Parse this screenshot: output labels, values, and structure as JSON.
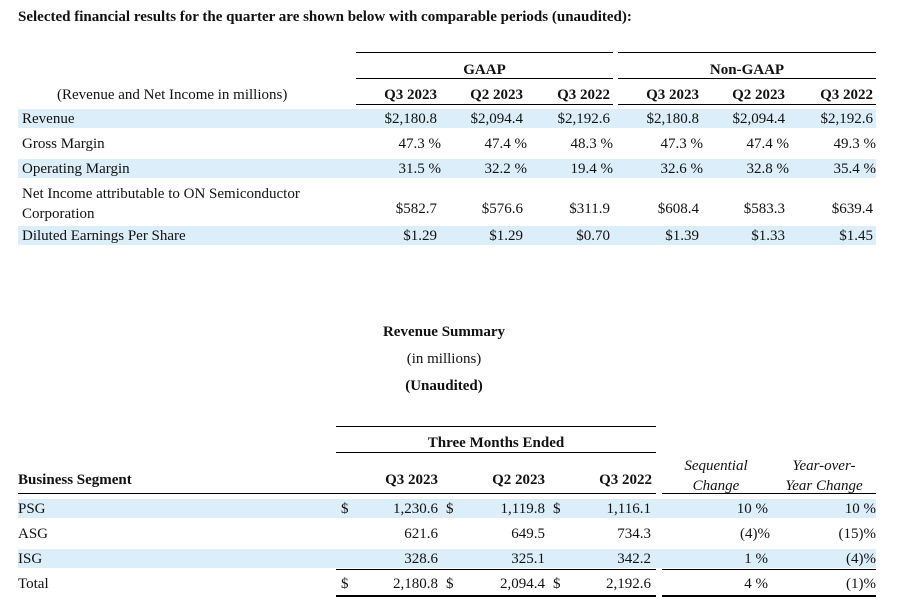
{
  "heading": "Selected financial results for the quarter are shown below with comparable periods (unaudited):",
  "financials": {
    "group_gaap": "GAAP",
    "group_nongaap": "Non-GAAP",
    "units_label": "(Revenue and Net Income in millions)",
    "columns": [
      "Q3 2023",
      "Q2 2023",
      "Q3 2022",
      "Q3 2023",
      "Q2 2023",
      "Q3 2022"
    ],
    "rows": [
      {
        "label": "Revenue",
        "values": [
          "$2,180.8",
          "$2,094.4",
          "$2,192.6",
          "$2,180.8",
          "$2,094.4",
          "$2,192.6"
        ]
      },
      {
        "label": "Gross Margin",
        "values": [
          "47.3 %",
          "47.4 %",
          "48.3 %",
          "47.3 %",
          "47.4 %",
          "49.3 %"
        ]
      },
      {
        "label": "Operating Margin",
        "values": [
          "31.5 %",
          "32.2 %",
          "19.4 %",
          "32.6 %",
          "32.8 %",
          "35.4 %"
        ]
      },
      {
        "label_line1": "Net Income attributable to ON Semiconductor",
        "label_line2": "Corporation",
        "values": [
          "$582.7",
          "$576.6",
          "$311.9",
          "$608.4",
          "$583.3",
          "$639.4"
        ]
      },
      {
        "label": "Diluted Earnings Per Share",
        "values": [
          "$1.29",
          "$1.29",
          "$0.70",
          "$1.39",
          "$1.33",
          "$1.45"
        ]
      }
    ]
  },
  "revenue_summary": {
    "title": "Revenue Summary",
    "subtitle": "(in millions)",
    "note": "(Unaudited)",
    "period_header": "Three Months Ended",
    "segment_header": "Business Segment",
    "columns": [
      "Q3 2023",
      "Q2 2023",
      "Q3 2022"
    ],
    "seq_header_line1": "Sequential",
    "seq_header_line2": "Change",
    "yoy_header_line1": "Year-over-",
    "yoy_header_line2": "Year Change",
    "currency": "$",
    "rows": [
      {
        "label": "PSG",
        "values": [
          "1,230.6",
          "1,119.8",
          "1,116.1"
        ],
        "sequential": "10 %",
        "yoy": "10 %"
      },
      {
        "label": "ASG",
        "values": [
          "621.6",
          "649.5",
          "734.3"
        ],
        "sequential": "(4)%",
        "yoy": "(15)%"
      },
      {
        "label": "ISG",
        "values": [
          "328.6",
          "325.1",
          "342.2"
        ],
        "sequential": "1 %",
        "yoy": "(4)%"
      },
      {
        "label": "Total",
        "values": [
          "2,180.8",
          "2,094.4",
          "2,192.6"
        ],
        "sequential": "4 %",
        "yoy": "(1)%"
      }
    ]
  }
}
